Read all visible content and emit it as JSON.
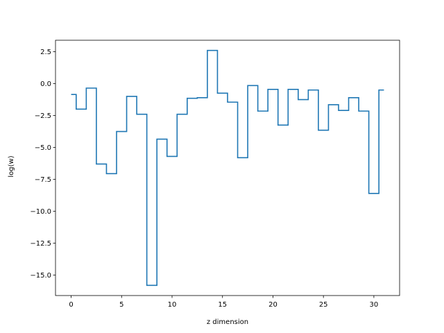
{
  "chart_data": {
    "type": "line",
    "drawstyle": "steps-mid",
    "title": "",
    "xlabel": "z dimension",
    "ylabel": "log(w)",
    "xlim": [
      -1.55,
      32.55
    ],
    "ylim": [
      -16.6,
      3.4
    ],
    "xticks": [
      0,
      5,
      10,
      15,
      20,
      25,
      30
    ],
    "xtick_labels": [
      "0",
      "5",
      "10",
      "15",
      "20",
      "25",
      "30"
    ],
    "yticks": [
      2.5,
      0.0,
      -2.5,
      -5.0,
      -7.5,
      -10.0,
      -12.5,
      -15.0
    ],
    "ytick_labels": [
      "2.5",
      "0.0",
      "−2.5",
      "−5.0",
      "−7.5",
      "−10.0",
      "−12.5",
      "−15.0"
    ],
    "grid": false,
    "line_color": "#1f77b4",
    "series": [
      {
        "x": [
          0,
          1,
          2,
          3,
          4,
          5,
          6,
          7,
          8,
          9,
          10,
          11,
          12,
          13,
          14,
          15,
          16,
          17,
          18,
          19,
          20,
          21,
          22,
          23,
          24,
          25,
          26,
          27,
          28,
          29,
          30,
          31
        ],
        "values": [
          -0.85,
          -2.0,
          -0.35,
          -6.3,
          -7.05,
          -3.75,
          -1.0,
          -2.4,
          -15.8,
          -4.35,
          -5.7,
          -2.4,
          -1.15,
          -1.1,
          2.6,
          -0.75,
          -1.45,
          -5.8,
          -0.15,
          -2.15,
          -0.45,
          -3.25,
          -0.45,
          -1.25,
          -0.5,
          -3.65,
          -1.65,
          -2.1,
          -1.1,
          -2.15,
          -8.6,
          -0.5
        ]
      }
    ]
  }
}
